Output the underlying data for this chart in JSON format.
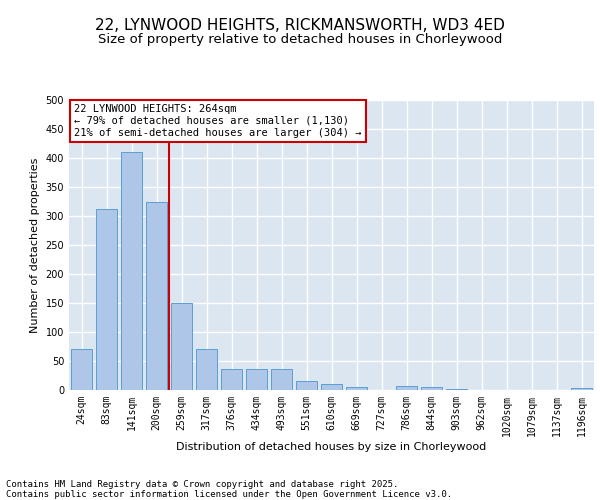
{
  "title_line1": "22, LYNWOOD HEIGHTS, RICKMANSWORTH, WD3 4ED",
  "title_line2": "Size of property relative to detached houses in Chorleywood",
  "xlabel": "Distribution of detached houses by size in Chorleywood",
  "ylabel": "Number of detached properties",
  "categories": [
    "24sqm",
    "83sqm",
    "141sqm",
    "200sqm",
    "259sqm",
    "317sqm",
    "376sqm",
    "434sqm",
    "493sqm",
    "551sqm",
    "610sqm",
    "669sqm",
    "727sqm",
    "786sqm",
    "844sqm",
    "903sqm",
    "962sqm",
    "1020sqm",
    "1079sqm",
    "1137sqm",
    "1196sqm"
  ],
  "values": [
    70,
    312,
    410,
    325,
    150,
    70,
    37,
    37,
    37,
    15,
    11,
    5,
    0,
    7,
    6,
    1,
    0,
    0,
    0,
    0,
    3
  ],
  "bar_color": "#aec6e8",
  "bar_edge_color": "#5a9fd4",
  "vline_x_index": 3.5,
  "vline_color": "#cc0000",
  "annotation_text": "22 LYNWOOD HEIGHTS: 264sqm\n← 79% of detached houses are smaller (1,130)\n21% of semi-detached houses are larger (304) →",
  "annotation_box_color": "#ffffff",
  "annotation_box_edge": "#cc0000",
  "ylim": [
    0,
    500
  ],
  "yticks": [
    0,
    50,
    100,
    150,
    200,
    250,
    300,
    350,
    400,
    450,
    500
  ],
  "background_color": "#dce6f1",
  "grid_color": "#ffffff",
  "footer_text": "Contains HM Land Registry data © Crown copyright and database right 2025.\nContains public sector information licensed under the Open Government Licence v3.0.",
  "title_fontsize": 11,
  "subtitle_fontsize": 9.5,
  "annotation_fontsize": 7.5,
  "footer_fontsize": 6.5,
  "axis_label_fontsize": 8,
  "tick_fontsize": 7
}
